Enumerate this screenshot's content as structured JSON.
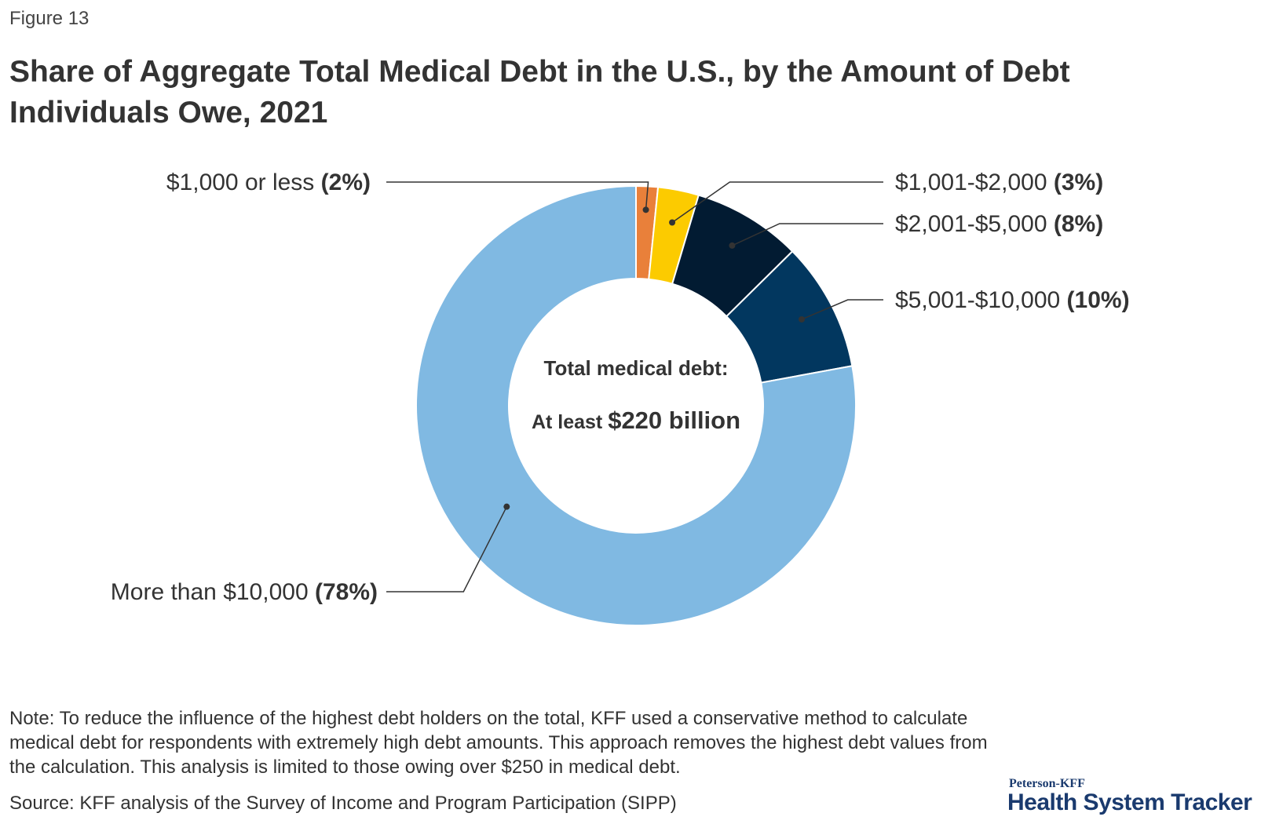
{
  "figure_label": "Figure 13",
  "title": "Share of Aggregate Total Medical Debt in the U.S., by the Amount of Debt Individuals Owe, 2021",
  "center": {
    "line1": "Total medical debt:",
    "line2_prefix": "At least ",
    "line2_value": "$220 billion"
  },
  "chart_data": {
    "type": "pie",
    "donut": true,
    "start": "top, clockwise",
    "slices": [
      {
        "label": "$1,000 or less",
        "pct_label": "(2%)",
        "value": 1.6,
        "color": "#e9803a"
      },
      {
        "label": "$1,001-$2,000",
        "pct_label": "(3%)",
        "value": 3,
        "color": "#fccb00"
      },
      {
        "label": "$2,001-$5,000",
        "pct_label": "(8%)",
        "value": 8,
        "color": "#021b32"
      },
      {
        "label": "$5,001-$10,000",
        "pct_label": "(10%)",
        "value": 9.5,
        "color": "#02375f"
      },
      {
        "label": "More than $10,000",
        "pct_label": "(78%)",
        "value": 77.9,
        "color": "#80b9e2"
      }
    ]
  },
  "note": "Note: To reduce the influence of the highest debt holders on the total, KFF used a conservative method to calculate medical debt for respondents with extremely high debt amounts. This approach removes the highest debt values from the calculation. This analysis is limited to those owing over $250 in medical debt.",
  "source": "Source: KFF analysis of the Survey of Income and Program Participation (SIPP)",
  "brand": {
    "small": "Peterson-KFF",
    "big": "Health System Tracker"
  }
}
